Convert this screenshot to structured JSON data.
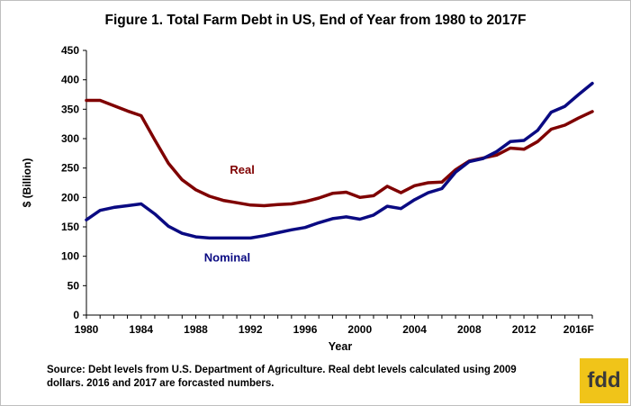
{
  "chart_data": {
    "type": "line",
    "title": "Figure 1.   Total Farm Debt in US, End of Year from 1980 to 2017F",
    "xlabel": "Year",
    "ylabel": "$ (Billion)",
    "xlim": [
      1980,
      2017
    ],
    "ylim": [
      0,
      450
    ],
    "y_ticks": [
      0,
      50,
      100,
      150,
      200,
      250,
      300,
      350,
      400,
      450
    ],
    "x_ticks": [
      {
        "value": 1980,
        "label": "1980"
      },
      {
        "value": 1984,
        "label": "1984"
      },
      {
        "value": 1988,
        "label": "1988"
      },
      {
        "value": 1992,
        "label": "1992"
      },
      {
        "value": 1996,
        "label": "1996"
      },
      {
        "value": 2000,
        "label": "2000"
      },
      {
        "value": 2004,
        "label": "2004"
      },
      {
        "value": 2008,
        "label": "2008"
      },
      {
        "value": 2012,
        "label": "2012"
      },
      {
        "value": 2016,
        "label": "2016F"
      }
    ],
    "grid": false,
    "x": [
      1980,
      1981,
      1982,
      1983,
      1984,
      1985,
      1986,
      1987,
      1988,
      1989,
      1990,
      1991,
      1992,
      1993,
      1994,
      1995,
      1996,
      1997,
      1998,
      1999,
      2000,
      2001,
      2002,
      2003,
      2004,
      2005,
      2006,
      2007,
      2008,
      2009,
      2010,
      2011,
      2012,
      2013,
      2014,
      2015,
      2016,
      2017
    ],
    "series": [
      {
        "name": "Real",
        "color": "#7f0000",
        "values": [
          365,
          365,
          356,
          347,
          339,
          298,
          258,
          230,
          213,
          202,
          195,
          191,
          187,
          186,
          188,
          189,
          193,
          199,
          207,
          209,
          200,
          203,
          219,
          208,
          220,
          225,
          226,
          247,
          262,
          267,
          272,
          284,
          282,
          295,
          316,
          323,
          335,
          346
        ]
      },
      {
        "name": "Nominal",
        "color": "#0a0a82",
        "values": [
          162,
          178,
          183,
          186,
          189,
          172,
          151,
          139,
          133,
          131,
          131,
          131,
          131,
          135,
          140,
          145,
          149,
          157,
          164,
          167,
          163,
          170,
          185,
          181,
          196,
          208,
          215,
          243,
          261,
          266,
          278,
          295,
          297,
          314,
          345,
          355,
          375,
          394
        ]
      }
    ]
  },
  "labels": {
    "real": "Real",
    "nominal": "Nominal"
  },
  "source_line1": "Source: Debt levels from U.S. Department of Agriculture.  Real debt levels calculated using 2009",
  "source_line2": "dollars. 2016 and  2017 are forcasted numbers.",
  "logo_text": "fdd"
}
